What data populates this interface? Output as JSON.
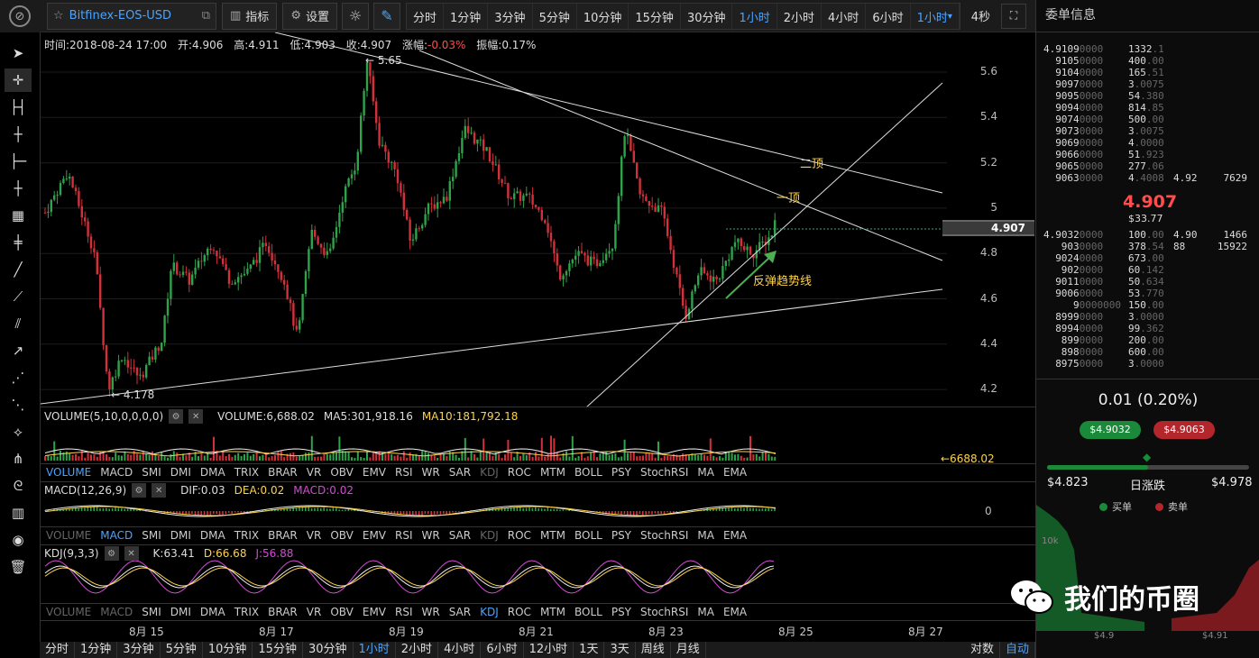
{
  "toolbar": {
    "symbol": "Bitfinex-EOS-USD",
    "indicator_label": "指标",
    "settings_label": "设置",
    "intervals": [
      "分时",
      "1分钟",
      "3分钟",
      "5分钟",
      "10分钟",
      "15分钟",
      "30分钟",
      "1小时",
      "2小时",
      "4小时",
      "6小时",
      "1小时"
    ],
    "active_interval_index": 7,
    "refresh": "4秒"
  },
  "info": {
    "time": "时间:2018-08-24 17:00",
    "open": "开:4.906",
    "high": "高:4.911",
    "low": "低:4.903",
    "close": "收:4.907",
    "change_label": "涨幅:",
    "change": "-0.03%",
    "amplitude": "振幅:0.17%"
  },
  "yaxis": [
    "5.6",
    "5.4",
    "5.2",
    "5",
    "4.8",
    "4.6",
    "4.4",
    "4.2"
  ],
  "current_price": "4.907",
  "annotations": {
    "top2": "二顶",
    "top1": "一顶",
    "trend": "反弹趋势线",
    "high_label": "← 5.65",
    "low_label": "← 4.178"
  },
  "volume": {
    "head": "VOLUME(5,10,0,0,0,0)",
    "value": "VOLUME:6,688.02",
    "ma5": "MA5:301,918.16",
    "ma10": "MA10:181,792.18",
    "last": "←6688.02"
  },
  "indicator_tabs": [
    "VOLUME",
    "MACD",
    "SMI",
    "DMI",
    "DMA",
    "TRIX",
    "BRAR",
    "VR",
    "OBV",
    "EMV",
    "RSI",
    "WR",
    "SAR",
    "KDJ",
    "ROC",
    "MTM",
    "BOLL",
    "PSY",
    "StochRSI",
    "MA",
    "EMA"
  ],
  "macd": {
    "head": "MACD(12,26,9)",
    "dif": "DIF:0.03",
    "dea": "DEA:0.02",
    "macd": "MACD:0.02",
    "zero": "0"
  },
  "kdj": {
    "head": "KDJ(9,3,3)",
    "k": "K:63.41",
    "d": "D:66.68",
    "j": "J:56.88"
  },
  "xaxis": [
    "8月 15",
    "8月 17",
    "8月 19",
    "8月 21",
    "8月 23",
    "8月 25",
    "8月 27"
  ],
  "bottom": {
    "intervals": [
      "分时",
      "1分钟",
      "3分钟",
      "5分钟",
      "10分钟",
      "15分钟",
      "30分钟",
      "1小时",
      "2小时",
      "4小时",
      "6小时",
      "12小时",
      "1天",
      "3天",
      "周线",
      "月线"
    ],
    "active_index": 7,
    "log": "对数",
    "auto": "自动"
  },
  "book": {
    "title": "委单信息",
    "asks": [
      {
        "p": "4.9109",
        "z": "0000",
        "a": "1332",
        "ad": ".1",
        "c3": "",
        "c4": ""
      },
      {
        "p": "9105",
        "z": "0000",
        "a": "400",
        "ad": ".00",
        "c3": "",
        "c4": ""
      },
      {
        "p": "9104",
        "z": "0000",
        "a": "165",
        "ad": ".51",
        "c3": "",
        "c4": ""
      },
      {
        "p": "9097",
        "z": "0000",
        "a": "3",
        "ad": ".0075",
        "c3": "",
        "c4": ""
      },
      {
        "p": "9095",
        "z": "0000",
        "a": "54",
        "ad": ".380",
        "c3": "",
        "c4": ""
      },
      {
        "p": "9094",
        "z": "0000",
        "a": "814",
        "ad": ".85",
        "c3": "",
        "c4": ""
      },
      {
        "p": "9074",
        "z": "0000",
        "a": "500",
        "ad": ".00",
        "c3": "",
        "c4": ""
      },
      {
        "p": "9073",
        "z": "0000",
        "a": "3",
        "ad": ".0075",
        "c3": "",
        "c4": ""
      },
      {
        "p": "9069",
        "z": "0000",
        "a": "4",
        "ad": ".0000",
        "c3": "",
        "c4": ""
      },
      {
        "p": "9066",
        "z": "0000",
        "a": "51",
        "ad": ".923",
        "c3": "",
        "c4": ""
      },
      {
        "p": "9065",
        "z": "0000",
        "a": "277",
        "ad": ".06",
        "c3": "",
        "c4": ""
      },
      {
        "p": "9063",
        "z": "0000",
        "a": "4",
        "ad": ".4008",
        "c3": "4.92",
        "c4": "7629"
      }
    ],
    "last": "4.907",
    "last_usd": "$33.77",
    "bids": [
      {
        "p": "4.9032",
        "z": "0000",
        "a": "100",
        "ad": ".00",
        "c3": "4.90",
        "c4": "1466"
      },
      {
        "p": "903",
        "z": "0000",
        "a": "378",
        "ad": ".54",
        "c3": "88",
        "c4": "15922"
      },
      {
        "p": "9024",
        "z": "0000",
        "a": "673",
        "ad": ".00",
        "c3": "",
        "c4": ""
      },
      {
        "p": "902",
        "z": "0000",
        "a": "60",
        "ad": ".142",
        "c3": "",
        "c4": ""
      },
      {
        "p": "9011",
        "z": "0000",
        "a": "50",
        "ad": ".634",
        "c3": "",
        "c4": ""
      },
      {
        "p": "9006",
        "z": "0000",
        "a": "53",
        "ad": ".770",
        "c3": "",
        "c4": ""
      },
      {
        "p": "9",
        "z": "0000000",
        "a": "150",
        "ad": ".00",
        "c3": "",
        "c4": ""
      },
      {
        "p": "8999",
        "z": "0000",
        "a": "3",
        "ad": ".0000",
        "c3": "",
        "c4": ""
      },
      {
        "p": "8994",
        "z": "0000",
        "a": "99",
        "ad": ".362",
        "c3": "",
        "c4": ""
      },
      {
        "p": "899",
        "z": "0000",
        "a": "200",
        "ad": ".00",
        "c3": "",
        "c4": ""
      },
      {
        "p": "898",
        "z": "0000",
        "a": "600",
        "ad": ".00",
        "c3": "",
        "c4": ""
      },
      {
        "p": "8975",
        "z": "0000",
        "a": "3",
        "ad": ".0000",
        "c3": "",
        "c4": ""
      }
    ],
    "change": "0.01 (0.20%)",
    "bid_pill": "$4.9032",
    "ask_pill": "$4.9063",
    "range_low": "$4.823",
    "range_label": "日涨跌",
    "range_high": "$4.978",
    "range_fill": 0.5,
    "buy_label": "买单",
    "sell_label": "卖单",
    "depth_tick": "10k",
    "depth_x1": "$4.9",
    "depth_x2": "$4.91",
    "colors": {
      "buy": "#1a8a3a",
      "sell": "#b3262b"
    }
  },
  "watermark": "我们的币圈"
}
